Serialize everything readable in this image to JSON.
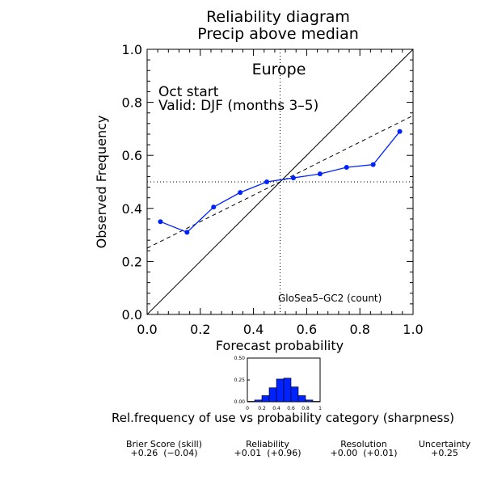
{
  "title_line1": "Reliability diagram",
  "title_line2": "Precip above median",
  "region": "Europe",
  "start": "Oct start",
  "valid": "Valid: DJF (months 3–5)",
  "model": "GloSea5–GC2 (count)",
  "series_color": "#0022ff",
  "sharpness_caption": "Rel.frequency of use vs probability category (sharpness)",
  "scores": [
    {
      "label": "Brier Score (skill)",
      "value": "+0.26  (−0.04)"
    },
    {
      "label": "Reliability",
      "value": "+0.01  (+0.96)"
    },
    {
      "label": "Resolution",
      "value": "+0.00  (+0.01)"
    },
    {
      "label": "Uncertainty",
      "value": "+0.25"
    }
  ],
  "chart_data": [
    {
      "type": "line",
      "title": "Reliability diagram",
      "subtitle": "Precip above median",
      "xlabel": "Forecast probability",
      "ylabel": "Observed Frequency",
      "xlim": [
        0,
        1
      ],
      "ylim": [
        0,
        1
      ],
      "x_ticks": [
        "0.0",
        "0.2",
        "0.4",
        "0.6",
        "0.8",
        "1.0"
      ],
      "y_ticks": [
        "0.0",
        "0.2",
        "0.4",
        "0.6",
        "0.8",
        "1.0"
      ],
      "x": [
        0.05,
        0.15,
        0.25,
        0.35,
        0.45,
        0.55,
        0.65,
        0.75,
        0.85,
        0.95
      ],
      "values": [
        0.35,
        0.31,
        0.405,
        0.46,
        0.5,
        0.515,
        0.53,
        0.555,
        0.565,
        0.69
      ],
      "reference_lines": {
        "diagonal": [
          [
            0,
            0
          ],
          [
            1,
            1
          ]
        ],
        "regression": [
          [
            0,
            0.25
          ],
          [
            1,
            0.75
          ]
        ],
        "climatology_x": 0.5,
        "climatology_y": 0.5
      }
    },
    {
      "type": "bar",
      "categories": [
        "0.05",
        "0.15",
        "0.25",
        "0.35",
        "0.45",
        "0.55",
        "0.65",
        "0.75",
        "0.85",
        "0.95"
      ],
      "values": [
        0.005,
        0.02,
        0.07,
        0.16,
        0.26,
        0.27,
        0.17,
        0.07,
        0.02,
        0.005
      ],
      "x_ticks": [
        "0",
        "0.2",
        "0.4",
        "0.6",
        "0.8",
        "1"
      ],
      "y_ticks": [
        "0.00",
        "0.25",
        "0.50"
      ],
      "xlim": [
        0,
        1
      ],
      "ylim": [
        0,
        0.5
      ]
    }
  ]
}
